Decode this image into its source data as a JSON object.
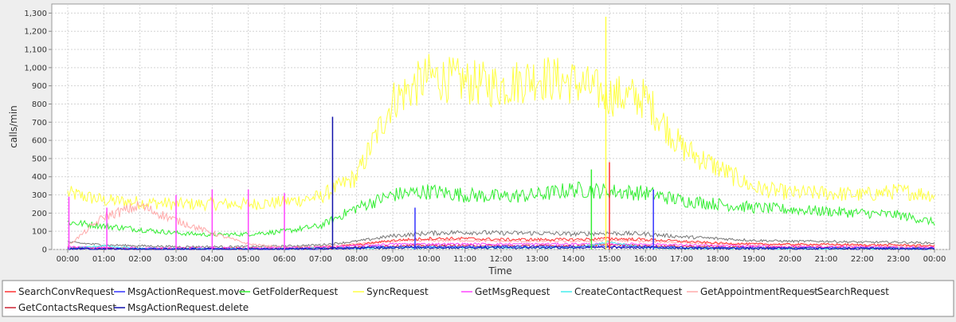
{
  "chart_data": {
    "type": "line",
    "title": "",
    "xlabel": "Time",
    "ylabel": "calls/min",
    "ylim": [
      0,
      1350
    ],
    "yticks": [
      0,
      100,
      200,
      300,
      400,
      500,
      600,
      700,
      800,
      900,
      1000,
      1100,
      1200,
      1300
    ],
    "ytick_labels": [
      "0",
      "100",
      "200",
      "300",
      "400",
      "500",
      "600",
      "700",
      "800",
      "900",
      "1,000",
      "1,100",
      "1,200",
      "1,300"
    ],
    "xlim": [
      "00:00",
      "24:00"
    ],
    "xtick_labels": [
      "00:00",
      "01:00",
      "02:00",
      "03:00",
      "04:00",
      "05:00",
      "06:00",
      "07:00",
      "08:00",
      "09:00",
      "10:00",
      "11:00",
      "12:00",
      "13:00",
      "14:00",
      "15:00",
      "16:00",
      "17:00",
      "18:00",
      "19:00",
      "20:00",
      "21:00",
      "22:00",
      "23:00",
      "00:00"
    ],
    "grid": true,
    "legend_position": "bottom",
    "series": [
      {
        "name": "SearchConvRequest",
        "color": "#ff3333",
        "x": [
          "00:00",
          "01:00",
          "02:00",
          "03:00",
          "04:00",
          "05:00",
          "06:00",
          "07:00",
          "08:00",
          "09:00",
          "10:00",
          "11:00",
          "12:00",
          "13:00",
          "14:00",
          "15:00",
          "16:00",
          "17:00",
          "18:00",
          "19:00",
          "20:00",
          "21:00",
          "22:00",
          "23:00",
          "24:00"
        ],
        "values": [
          10,
          8,
          6,
          5,
          5,
          5,
          6,
          10,
          25,
          50,
          60,
          60,
          55,
          55,
          55,
          60,
          55,
          45,
          35,
          30,
          28,
          28,
          25,
          25,
          20
        ]
      },
      {
        "name": "MsgActionRequest.move",
        "color": "#3333ff",
        "x": [
          "00:00",
          "01:00",
          "02:00",
          "03:00",
          "04:00",
          "05:00",
          "06:00",
          "07:00",
          "08:00",
          "09:00",
          "10:00",
          "11:00",
          "12:00",
          "13:00",
          "14:00",
          "15:00",
          "16:00",
          "17:00",
          "18:00",
          "19:00",
          "20:00",
          "21:00",
          "22:00",
          "23:00",
          "24:00"
        ],
        "values": [
          5,
          3,
          2,
          2,
          2,
          2,
          2,
          5,
          10,
          15,
          15,
          15,
          15,
          15,
          15,
          15,
          15,
          12,
          10,
          8,
          8,
          8,
          8,
          6,
          5
        ]
      },
      {
        "name": "GetFolderRequest",
        "color": "#33ee33",
        "x": [
          "00:00",
          "01:00",
          "02:00",
          "03:00",
          "04:00",
          "05:00",
          "06:00",
          "07:00",
          "08:00",
          "09:00",
          "10:00",
          "11:00",
          "12:00",
          "13:00",
          "14:00",
          "15:00",
          "16:00",
          "17:00",
          "18:00",
          "19:00",
          "20:00",
          "21:00",
          "22:00",
          "23:00",
          "24:00"
        ],
        "values": [
          150,
          130,
          110,
          90,
          80,
          85,
          100,
          130,
          230,
          300,
          320,
          300,
          290,
          300,
          330,
          320,
          310,
          270,
          250,
          230,
          220,
          210,
          200,
          190,
          150
        ]
      },
      {
        "name": "SyncRequest",
        "color": "#ffff44",
        "x": [
          "00:00",
          "01:00",
          "02:00",
          "03:00",
          "04:00",
          "05:00",
          "06:00",
          "07:00",
          "08:00",
          "09:00",
          "10:00",
          "11:00",
          "12:00",
          "13:00",
          "14:00",
          "15:00",
          "16:00",
          "17:00",
          "18:00",
          "19:00",
          "20:00",
          "21:00",
          "22:00",
          "23:00",
          "24:00"
        ],
        "values": [
          310,
          270,
          260,
          250,
          250,
          250,
          260,
          290,
          400,
          820,
          950,
          920,
          900,
          950,
          920,
          850,
          830,
          560,
          450,
          340,
          310,
          310,
          300,
          320,
          300
        ]
      },
      {
        "name": "GetMsgRequest",
        "color": "#ff44ff",
        "x": [
          "00:00",
          "01:00",
          "02:00",
          "03:00",
          "04:00",
          "05:00",
          "06:00",
          "07:00",
          "08:00",
          "09:00",
          "10:00",
          "11:00",
          "12:00",
          "13:00",
          "14:00",
          "15:00",
          "16:00",
          "17:00",
          "18:00",
          "19:00",
          "20:00",
          "21:00",
          "22:00",
          "23:00",
          "24:00"
        ],
        "values": [
          15,
          10,
          8,
          8,
          8,
          8,
          8,
          12,
          20,
          30,
          30,
          30,
          30,
          30,
          30,
          30,
          30,
          25,
          20,
          18,
          15,
          15,
          15,
          12,
          10
        ]
      },
      {
        "name": "CreateContactRequest",
        "color": "#44eeee",
        "x": [
          "00:00",
          "01:00",
          "02:00",
          "03:00",
          "04:00",
          "05:00",
          "06:00",
          "07:00",
          "08:00",
          "09:00",
          "10:00",
          "11:00",
          "12:00",
          "13:00",
          "14:00",
          "15:00",
          "16:00",
          "17:00",
          "18:00",
          "19:00",
          "20:00",
          "21:00",
          "22:00",
          "23:00",
          "24:00"
        ],
        "values": [
          5,
          20,
          5,
          3,
          3,
          3,
          3,
          5,
          8,
          10,
          10,
          10,
          10,
          10,
          10,
          40,
          10,
          8,
          6,
          5,
          5,
          5,
          5,
          4,
          3
        ]
      },
      {
        "name": "GetAppointmentRequest",
        "color": "#ffaaaa",
        "x": [
          "00:00",
          "01:00",
          "02:00",
          "03:00",
          "04:00",
          "05:00",
          "06:00",
          "07:00",
          "08:00",
          "09:00",
          "10:00",
          "11:00",
          "12:00",
          "13:00",
          "14:00",
          "15:00",
          "16:00",
          "17:00",
          "18:00",
          "19:00",
          "20:00",
          "21:00",
          "22:00",
          "23:00",
          "24:00"
        ],
        "values": [
          20,
          180,
          240,
          160,
          90,
          30,
          10,
          15,
          30,
          45,
          50,
          50,
          45,
          45,
          45,
          50,
          45,
          40,
          30,
          25,
          25,
          25,
          22,
          20,
          18
        ]
      },
      {
        "name": "SearchRequest",
        "color": "#777777",
        "x": [
          "00:00",
          "01:00",
          "02:00",
          "03:00",
          "04:00",
          "05:00",
          "06:00",
          "07:00",
          "08:00",
          "09:00",
          "10:00",
          "11:00",
          "12:00",
          "13:00",
          "14:00",
          "15:00",
          "16:00",
          "17:00",
          "18:00",
          "19:00",
          "20:00",
          "21:00",
          "22:00",
          "23:00",
          "24:00"
        ],
        "values": [
          40,
          25,
          20,
          15,
          15,
          15,
          18,
          25,
          45,
          75,
          90,
          95,
          90,
          90,
          85,
          90,
          85,
          70,
          60,
          50,
          45,
          45,
          40,
          40,
          35
        ]
      },
      {
        "name": "GetContactsRequest",
        "color": "#cc2233",
        "x": [
          "00:00",
          "01:00",
          "02:00",
          "03:00",
          "04:00",
          "05:00",
          "06:00",
          "07:00",
          "08:00",
          "09:00",
          "10:00",
          "11:00",
          "12:00",
          "13:00",
          "14:00",
          "15:00",
          "16:00",
          "17:00",
          "18:00",
          "19:00",
          "20:00",
          "21:00",
          "22:00",
          "23:00",
          "24:00"
        ],
        "values": [
          8,
          5,
          4,
          3,
          3,
          3,
          3,
          6,
          12,
          20,
          22,
          22,
          20,
          20,
          20,
          25,
          20,
          18,
          15,
          12,
          12,
          12,
          10,
          10,
          8
        ]
      },
      {
        "name": "MsgActionRequest.delete",
        "color": "#1111aa",
        "x": [
          "00:00",
          "01:00",
          "02:00",
          "03:00",
          "04:00",
          "05:00",
          "06:00",
          "07:00",
          "08:00",
          "09:00",
          "10:00",
          "11:00",
          "12:00",
          "13:00",
          "14:00",
          "15:00",
          "16:00",
          "17:00",
          "18:00",
          "19:00",
          "20:00",
          "21:00",
          "22:00",
          "23:00",
          "24:00"
        ],
        "values": [
          5,
          3,
          2,
          2,
          2,
          2,
          2,
          4,
          8,
          10,
          10,
          10,
          10,
          10,
          10,
          10,
          10,
          8,
          6,
          5,
          5,
          5,
          5,
          4,
          3
        ]
      }
    ],
    "spikes": [
      {
        "series": "MsgActionRequest.delete",
        "x": "07:20",
        "value": 730
      },
      {
        "series": "SearchConvRequest",
        "x": "15:00",
        "value": 480
      },
      {
        "series": "GetFolderRequest",
        "x": "14:30",
        "value": 440
      },
      {
        "series": "SyncRequest",
        "x": "14:54",
        "value": 1280
      },
      {
        "series": "MsgActionRequest.move",
        "x": "16:13",
        "value": 330
      },
      {
        "series": "MsgActionRequest.move",
        "x": "09:37",
        "value": 230
      },
      {
        "series": "GetMsgRequest",
        "x": "00:02",
        "value": 290
      },
      {
        "series": "GetMsgRequest",
        "x": "01:05",
        "value": 230
      },
      {
        "series": "GetMsgRequest",
        "x": "03:00",
        "value": 300
      },
      {
        "series": "GetMsgRequest",
        "x": "04:00",
        "value": 330
      },
      {
        "series": "GetMsgRequest",
        "x": "05:00",
        "value": 330
      },
      {
        "series": "GetMsgRequest",
        "x": "06:00",
        "value": 310
      }
    ]
  }
}
